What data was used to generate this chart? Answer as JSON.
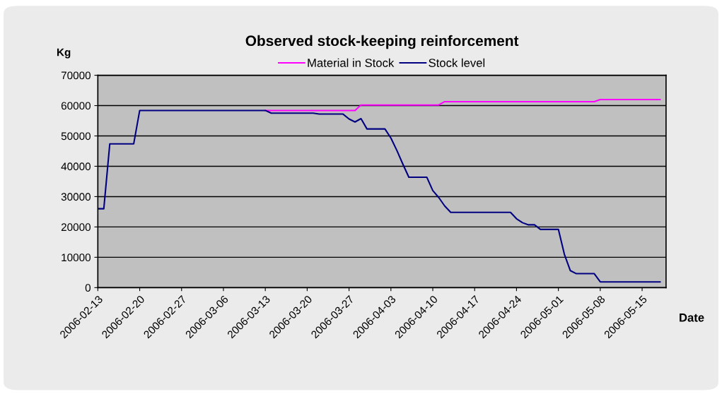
{
  "chart_data": {
    "type": "line",
    "title": "Observed stock-keeping reinforcement",
    "xlabel": "Date",
    "ylabel": "Kg",
    "series": [
      {
        "name": "Material in Stock",
        "color": "#ff00ff",
        "x": [
          "2006-03-13",
          "2006-03-28",
          "2006-03-29",
          "2006-04-11",
          "2006-04-12",
          "2006-05-07",
          "2006-05-08",
          "2006-05-18"
        ],
        "values": [
          58400,
          58400,
          60200,
          60200,
          61300,
          61300,
          62000,
          62000
        ]
      },
      {
        "name": "Stock level",
        "color": "#000080",
        "x": [
          "2006-02-13",
          "2006-02-14",
          "2006-02-15",
          "2006-02-19",
          "2006-02-20",
          "2006-03-13",
          "2006-03-14",
          "2006-03-21",
          "2006-03-22",
          "2006-03-26",
          "2006-03-27",
          "2006-03-28",
          "2006-03-29",
          "2006-03-30",
          "2006-04-02",
          "2006-04-03",
          "2006-04-04",
          "2006-04-05",
          "2006-04-06",
          "2006-04-09",
          "2006-04-10",
          "2006-04-11",
          "2006-04-12",
          "2006-04-13",
          "2006-04-23",
          "2006-04-24",
          "2006-04-25",
          "2006-04-26",
          "2006-04-27",
          "2006-04-28",
          "2006-05-01",
          "2006-05-02",
          "2006-05-03",
          "2006-05-04",
          "2006-05-07",
          "2006-05-08",
          "2006-05-18"
        ],
        "values": [
          26000,
          26000,
          47400,
          47400,
          58400,
          58400,
          57500,
          57500,
          57200,
          57200,
          55600,
          54600,
          55700,
          52300,
          52300,
          49300,
          45200,
          40700,
          36400,
          36400,
          32000,
          29700,
          26900,
          24800,
          24800,
          22700,
          21400,
          20700,
          20700,
          19200,
          19200,
          11000,
          5600,
          4600,
          4600,
          1900,
          1900
        ]
      }
    ],
    "xlim": [
      "2006-02-13",
      "2006-05-19"
    ],
    "xticks": [
      "2006-02-13",
      "2006-02-20",
      "2006-02-27",
      "2006-03-06",
      "2006-03-13",
      "2006-03-20",
      "2006-03-27",
      "2006-04-03",
      "2006-04-10",
      "2006-04-17",
      "2006-04-24",
      "2006-05-01",
      "2006-05-08",
      "2006-05-15"
    ],
    "ylim": [
      0,
      70000
    ],
    "yticks": [
      0,
      10000,
      20000,
      30000,
      40000,
      50000,
      60000,
      70000
    ],
    "grid": "y",
    "legend": "top",
    "marker": "none",
    "line_style": "solid"
  }
}
